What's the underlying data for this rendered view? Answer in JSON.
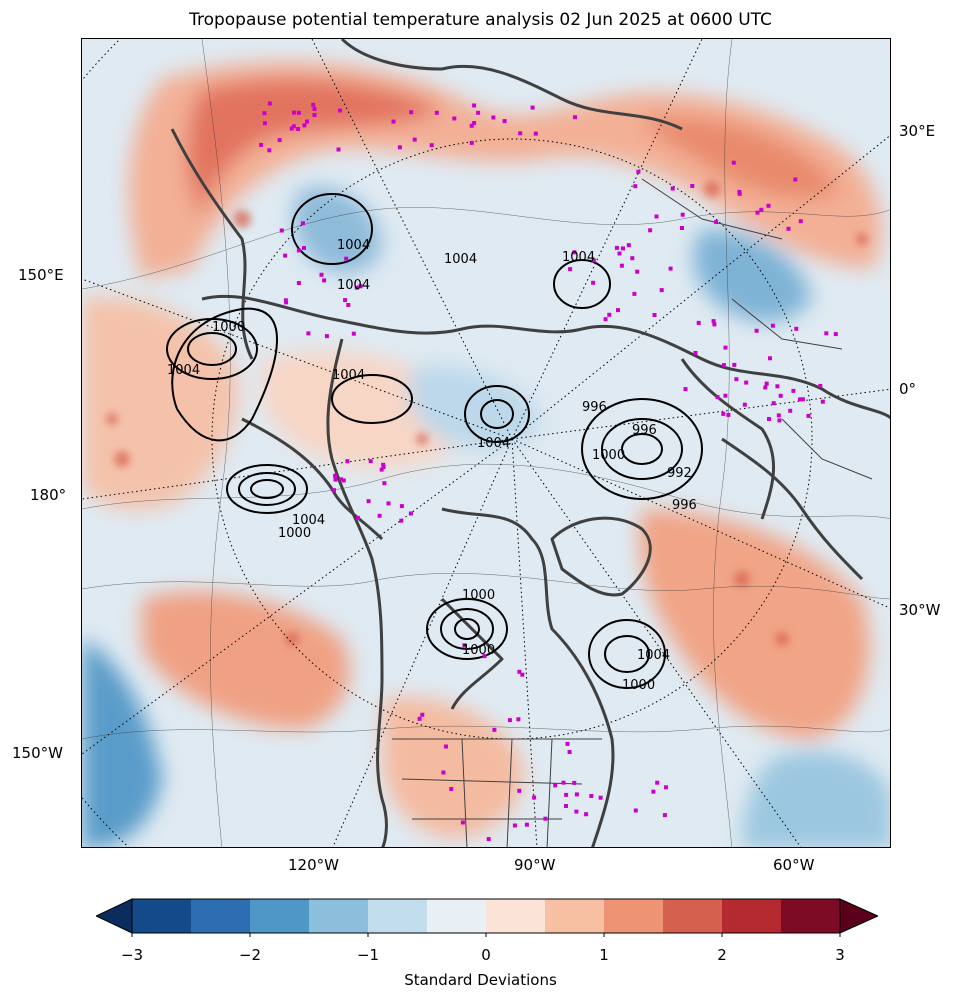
{
  "title": "Tropopause potential temperature analysis 02 Jun 2025 at 0600 UTC",
  "lon_labels": {
    "left": [
      "150°E",
      "180°",
      "150°W"
    ],
    "right": [
      "30°E",
      "0°",
      "30°W"
    ],
    "bottom": [
      "120°W",
      "90°W",
      "60°W"
    ]
  },
  "pressure_labels": [
    "1000",
    "1004",
    "1000",
    "1004",
    "1004",
    "1004",
    "1004",
    "1004",
    "996",
    "1004",
    "1000",
    "996",
    "992",
    "996",
    "1004",
    "1000",
    "1000",
    "1004",
    "1000"
  ],
  "colorbar": {
    "label": "Standard Deviations",
    "ticks": [
      "−3",
      "−2",
      "−1",
      "0",
      "1",
      "2",
      "3"
    ],
    "levels": [
      -3,
      -2.5,
      -2,
      -1.5,
      -1,
      -0.5,
      0,
      0.5,
      1,
      1.5,
      2,
      2.5,
      3
    ],
    "colors": [
      "#0b2d5e",
      "#134a8a",
      "#2c6eb1",
      "#4f97c7",
      "#8cbfdb",
      "#c2ddec",
      "#e8f0f6",
      "#fbe3d8",
      "#f7c0a3",
      "#ee9474",
      "#d6604e",
      "#b42a30",
      "#7d0b25",
      "#5b001a"
    ]
  },
  "colors": {
    "coast": "#404040",
    "stations": "#cc00cc",
    "isobar": "#000000"
  }
}
